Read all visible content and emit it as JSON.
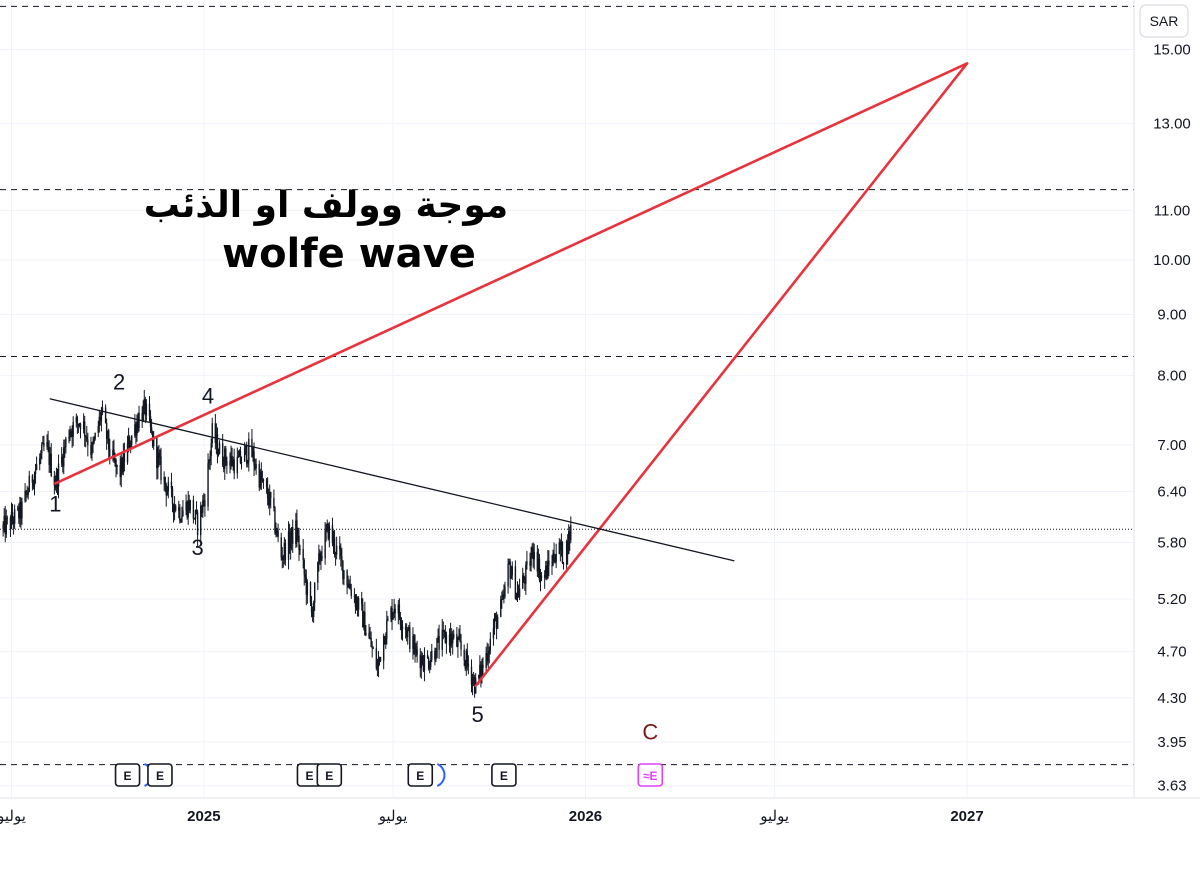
{
  "currency": "SAR",
  "title_arabic": "موجة وولف او الذئب",
  "title_english": "wolfe wave",
  "x_axis_labels": [
    {
      "text": "يوليو",
      "date": "2024-07-01",
      "bold": false
    },
    {
      "text": "2025",
      "date": "2025-01-01",
      "bold": true
    },
    {
      "text": "يوليو",
      "date": "2025-07-01",
      "bold": false
    },
    {
      "text": "2026",
      "date": "2026-01-01",
      "bold": true
    },
    {
      "text": "يوليو",
      "date": "2026-07-01",
      "bold": false
    },
    {
      "text": "2027",
      "date": "2027-01-01",
      "bold": true
    }
  ],
  "y_axis_labels": [
    "15.00",
    "13.00",
    "11.00",
    "10.00",
    "9.00",
    "8.00",
    "7.00",
    "6.40",
    "5.80",
    "5.20",
    "4.70",
    "4.30",
    "3.95",
    "3.63"
  ],
  "wave_labels": [
    "1",
    "2",
    "3",
    "4",
    "5"
  ],
  "target_label": "C",
  "earnings_markers": [
    {
      "text": "E",
      "date": "2024-10-20",
      "dividend": true,
      "future": false
    },
    {
      "text": "E",
      "date": "2024-11-20",
      "dividend": false,
      "future": false
    },
    {
      "text": "E",
      "date": "2025-04-12",
      "dividend": true,
      "future": false
    },
    {
      "text": "E",
      "date": "2025-05-01",
      "dividend": false,
      "future": false
    },
    {
      "text": "E",
      "date": "2025-07-27",
      "dividend": true,
      "future": false
    },
    {
      "text": "E",
      "date": "2025-10-15",
      "dividend": false,
      "future": false
    },
    {
      "text": "≈E",
      "date": "2026-03-04",
      "dividend": false,
      "future": true
    }
  ],
  "colors": {
    "wave_lines": "#e8323c",
    "candles": "#131722",
    "trendline": "#131722",
    "target_label": "#7a1b1b",
    "future_earnings": "#e040fb",
    "dividend_arc": "#2962ff",
    "grid": "#f0f3fa"
  },
  "chart_data": {
    "type": "candlestick",
    "x_axis": "date",
    "y_scale": "log",
    "ylim": [
      3.6,
      16.5
    ],
    "xlim": [
      "2024-06-20",
      "2027-04-20"
    ],
    "grid": true,
    "last_price": 5.95,
    "horizontal_levels": [
      16.3,
      11.45,
      8.3,
      3.78
    ],
    "price_path": [
      [
        "2024-06-22",
        5.95
      ],
      [
        "2024-07-10",
        6.15
      ],
      [
        "2024-07-20",
        6.55
      ],
      [
        "2024-08-03",
        7.0
      ],
      [
        "2024-08-12",
        6.5
      ],
      [
        "2024-08-25",
        7.2
      ],
      [
        "2024-09-06",
        7.35
      ],
      [
        "2024-09-16",
        6.9
      ],
      [
        "2024-09-25",
        7.45
      ],
      [
        "2024-10-04",
        6.85
      ],
      [
        "2024-10-12",
        6.6
      ],
      [
        "2024-10-22",
        7.05
      ],
      [
        "2024-10-31",
        7.4
      ],
      [
        "2024-11-06",
        7.5
      ],
      [
        "2024-11-14",
        7.0
      ],
      [
        "2024-11-22",
        6.6
      ],
      [
        "2024-12-01",
        6.3
      ],
      [
        "2024-12-10",
        6.15
      ],
      [
        "2024-12-18",
        6.25
      ],
      [
        "2024-12-26",
        6.0
      ],
      [
        "2025-01-02",
        6.35
      ],
      [
        "2025-01-09",
        7.15
      ],
      [
        "2025-01-18",
        6.85
      ],
      [
        "2025-02-02",
        6.75
      ],
      [
        "2025-02-14",
        6.95
      ],
      [
        "2025-02-24",
        6.55
      ],
      [
        "2025-03-06",
        6.25
      ],
      [
        "2025-03-16",
        5.65
      ],
      [
        "2025-03-30",
        5.95
      ],
      [
        "2025-04-07",
        5.45
      ],
      [
        "2025-04-14",
        5.05
      ],
      [
        "2025-04-22",
        5.65
      ],
      [
        "2025-04-30",
        5.95
      ],
      [
        "2025-05-10",
        5.65
      ],
      [
        "2025-05-20",
        5.35
      ],
      [
        "2025-06-01",
        5.05
      ],
      [
        "2025-06-10",
        4.75
      ],
      [
        "2025-06-16",
        4.55
      ],
      [
        "2025-06-22",
        4.85
      ],
      [
        "2025-07-02",
        5.15
      ],
      [
        "2025-07-12",
        4.95
      ],
      [
        "2025-07-22",
        4.7
      ],
      [
        "2025-08-02",
        4.6
      ],
      [
        "2025-08-12",
        4.75
      ],
      [
        "2025-08-22",
        4.85
      ],
      [
        "2025-09-02",
        4.75
      ],
      [
        "2025-09-12",
        4.55
      ],
      [
        "2025-09-18",
        4.4
      ],
      [
        "2025-09-26",
        4.6
      ],
      [
        "2025-10-06",
        4.95
      ],
      [
        "2025-10-14",
        5.15
      ],
      [
        "2025-10-20",
        5.55
      ],
      [
        "2025-10-28",
        5.25
      ],
      [
        "2025-11-05",
        5.45
      ],
      [
        "2025-11-13",
        5.75
      ],
      [
        "2025-11-20",
        5.4
      ],
      [
        "2025-11-28",
        5.55
      ],
      [
        "2025-12-05",
        5.75
      ],
      [
        "2025-12-12",
        5.65
      ],
      [
        "2025-12-20",
        6.05
      ]
    ],
    "pattern_points": [
      {
        "label": "1",
        "date": "2024-08-12",
        "price": 6.5
      },
      {
        "label": "2",
        "date": "2024-10-12",
        "price": 7.55
      },
      {
        "label": "3",
        "date": "2024-12-26",
        "price": 6.0
      },
      {
        "label": "4",
        "date": "2025-01-05",
        "price": 7.35
      },
      {
        "label": "5",
        "date": "2025-09-18",
        "price": 4.4
      }
    ],
    "lines": [
      {
        "name": "upper",
        "color": "red",
        "from": {
          "date": "2024-08-12",
          "price": 6.5
        },
        "to": {
          "date": "2027-01-01",
          "price": 14.6
        }
      },
      {
        "name": "lower",
        "color": "red",
        "from": {
          "date": "2025-09-18",
          "price": 4.4
        },
        "to": {
          "date": "2027-01-01",
          "price": 14.6
        }
      },
      {
        "name": "trendline",
        "color": "black",
        "from": {
          "date": "2024-08-07",
          "price": 7.65
        },
        "to": {
          "date": "2026-05-23",
          "price": 5.6
        }
      }
    ],
    "target": {
      "label": "C",
      "date": "2026-03-04",
      "price": 4.03
    }
  }
}
